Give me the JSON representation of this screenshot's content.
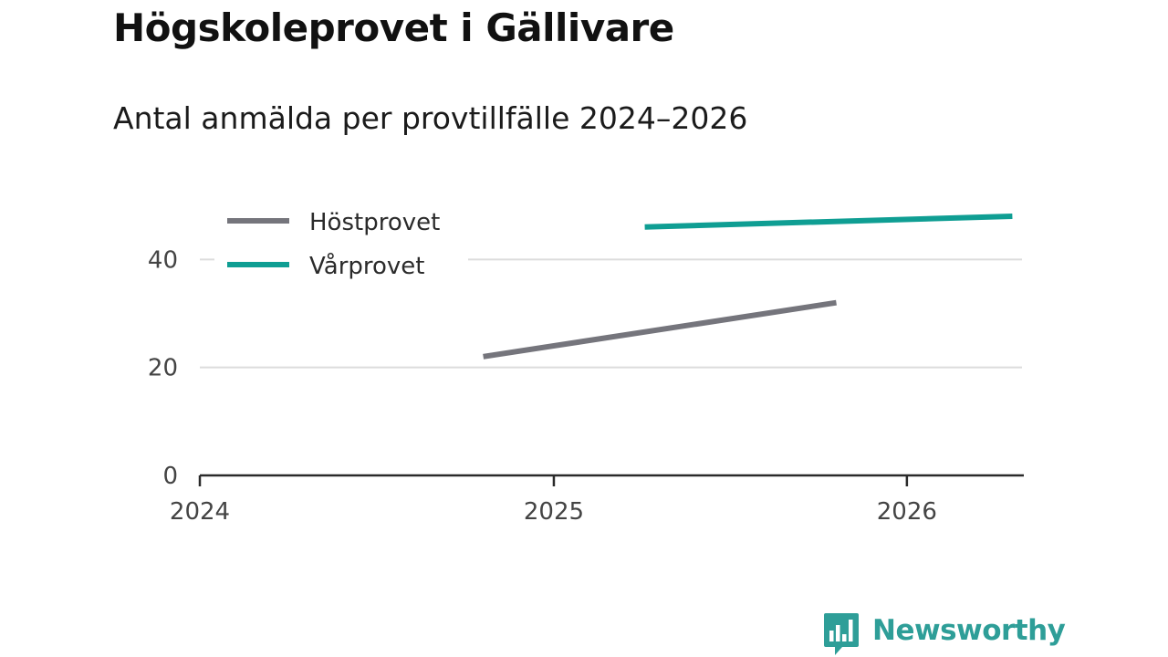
{
  "header": {
    "title": "Högskoleprovet i Gällivare",
    "subtitle": "Antal anmälda per provtillfälle 2024–2026"
  },
  "chart_data": {
    "type": "line",
    "title": "Högskoleprovet i Gällivare",
    "subtitle": "Antal anmälda per provtillfälle 2024–2026",
    "xlabel": "",
    "ylabel": "",
    "x_ticks": [
      "2024",
      "2025",
      "2026"
    ],
    "y_ticks": [
      0,
      20,
      40
    ],
    "xlim": [
      "2024-01-01",
      "2026-04-30"
    ],
    "ylim": [
      0,
      48
    ],
    "grid": "horizontal",
    "legend_position": "top-left",
    "series": [
      {
        "name": "Höstprovet",
        "color": "#75757c",
        "points": [
          {
            "x": "2024-10-20",
            "y": 22
          },
          {
            "x": "2025-10-20",
            "y": 32
          }
        ]
      },
      {
        "name": "Vårprovet",
        "color": "#0f9e93",
        "points": [
          {
            "x": "2025-04-05",
            "y": 46
          },
          {
            "x": "2026-04-20",
            "y": 48
          }
        ]
      }
    ]
  },
  "brand": {
    "name": "Newsworthy",
    "color": "#2e9e98",
    "icon": "chart-bubble-icon"
  }
}
